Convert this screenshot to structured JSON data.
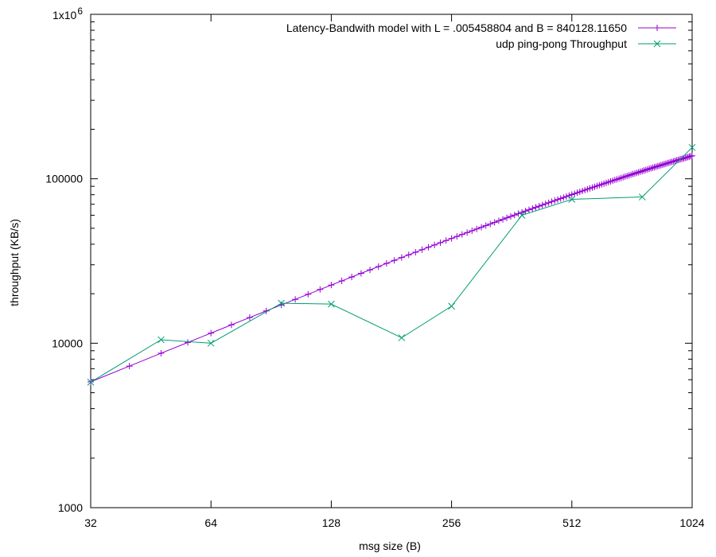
{
  "chart_data": {
    "type": "line",
    "title": "",
    "xlabel": "msg size (B)",
    "ylabel": "throughput (KB/s)",
    "xscale": "log2",
    "yscale": "log10",
    "xlim": [
      32,
      1024
    ],
    "ylim": [
      1000,
      1000000
    ],
    "x_ticks": [
      "32",
      "64",
      "128",
      "256",
      "512",
      "1024"
    ],
    "y_ticks": [
      "1000",
      "10000",
      "100000"
    ],
    "y_top_tick": {
      "base": "1x10",
      "exponent": "6"
    },
    "grid": false,
    "legend_position": "top-right",
    "series": [
      {
        "name": "Latency-Bandwith model with L = .005458804 and B = 840128.11650",
        "color": "#9400d3",
        "marker": "plus",
        "model": {
          "L": 0.005458804,
          "B": 840128.1165,
          "x_step": 8
        },
        "x": [
          32,
          40,
          48,
          56,
          64,
          72,
          80,
          88,
          96,
          104,
          112,
          120,
          128,
          136,
          144,
          152,
          160,
          168,
          176,
          184,
          192,
          200,
          208,
          216,
          224,
          232,
          240,
          248,
          256,
          264,
          272,
          280,
          288,
          296,
          304,
          312,
          320,
          328,
          336,
          344,
          352,
          360,
          368,
          376,
          384,
          392,
          400,
          408,
          416,
          424,
          432,
          440,
          448,
          456,
          464,
          472,
          480,
          488,
          496,
          504,
          512,
          520,
          528,
          536,
          544,
          552,
          560,
          568,
          576,
          584,
          592,
          600,
          608,
          616,
          624,
          632,
          640,
          648,
          656,
          664,
          672,
          680,
          688,
          696,
          704,
          712,
          720,
          728,
          736,
          744,
          752,
          760,
          768,
          776,
          784,
          792,
          800,
          808,
          816,
          824,
          832,
          840,
          848,
          856,
          864,
          872,
          880,
          888,
          896,
          904,
          912,
          920,
          928,
          936,
          944,
          952,
          960,
          968,
          976,
          984,
          992,
          1000,
          1008,
          1016,
          1024
        ],
        "y": [
          5824,
          7260,
          8690,
          10110,
          11520,
          12930,
          14330,
          15720,
          17100,
          18480,
          19850,
          21220,
          22570,
          23920,
          25270,
          26600,
          27930,
          29250,
          30570,
          31880,
          33180,
          34480,
          35770,
          37050,
          38320,
          39590,
          40850,
          42110,
          43360,
          44600,
          45840,
          47070,
          48290,
          49510,
          50720,
          51920,
          53120,
          54320,
          55500,
          56680,
          57860,
          59030,
          60190,
          61350,
          62500,
          63640,
          64780,
          65910,
          67040,
          68160,
          69280,
          70390,
          71490,
          72590,
          73680,
          74770,
          75850,
          76930,
          78000,
          79070,
          80130,
          81180,
          82230,
          83280,
          84320,
          85350,
          86380,
          87400,
          88420,
          89430,
          90440,
          91440,
          92440,
          93430,
          94420,
          95400,
          96380,
          97350,
          98320,
          99280,
          100240,
          101190,
          102140,
          103090,
          104030,
          104960,
          105890,
          106820,
          107740,
          108650,
          109560,
          110470,
          111370,
          112270,
          113160,
          114050,
          114930,
          115810,
          116690,
          117560,
          118420,
          119280,
          120140,
          120990,
          121840,
          122690,
          123530,
          124360,
          125190,
          126020,
          126840,
          127660,
          128480,
          129290,
          130090,
          130890,
          131690,
          132490,
          133280,
          134060,
          134840,
          135620,
          136400,
          137170,
          137930
        ]
      },
      {
        "name": "udp ping-pong Throughput",
        "color": "#009e73",
        "marker": "cross",
        "x": [
          32,
          48,
          64,
          96,
          128,
          192,
          256,
          384,
          512,
          768,
          1024
        ],
        "y": [
          5800,
          10500,
          10000,
          17500,
          17300,
          10800,
          16800,
          60000,
          75000,
          77500,
          155000
        ]
      }
    ]
  }
}
